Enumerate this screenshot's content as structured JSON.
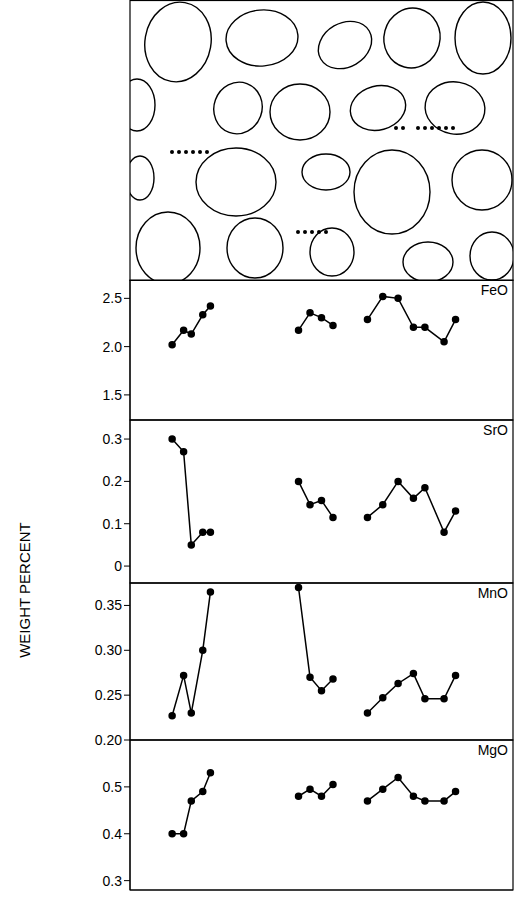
{
  "ylabel": "WEIGHT PERCENT",
  "chart_data": [
    {
      "type": "line",
      "title": "FeO",
      "color": "#000000",
      "marker": "circle",
      "tick_labels": "y",
      "grid": false,
      "x": [
        11,
        14,
        16,
        19,
        21,
        32,
        44,
        47,
        50,
        53,
        58,
        62,
        66,
        70,
        74,
        77,
        82,
        85
      ],
      "values": [
        2.02,
        2.17,
        2.13,
        2.33,
        2.42,
        null,
        2.17,
        2.35,
        2.3,
        2.22,
        null,
        2.28,
        2.52,
        2.5,
        2.2,
        2.2,
        2.05,
        2.28
      ],
      "xlim": [
        0,
        100
      ],
      "ylim": [
        1.24,
        2.69
      ],
      "yticks": [
        1.5,
        {
          "value": 2,
          "label": "2.0"
        },
        2.5
      ]
    },
    {
      "type": "line",
      "title": "SrO",
      "color": "#000000",
      "marker": "circle",
      "tick_labels": "y",
      "grid": false,
      "x": [
        11,
        14,
        16,
        19,
        21,
        32,
        44,
        47,
        50,
        53,
        58,
        62,
        66,
        70,
        74,
        77,
        82,
        85
      ],
      "values": [
        0.3,
        0.27,
        0.05,
        0.08,
        0.08,
        null,
        0.2,
        0.145,
        0.155,
        0.115,
        null,
        0.115,
        0.145,
        0.2,
        0.16,
        0.185,
        0.08,
        0.13
      ],
      "xlim": [
        0,
        100
      ],
      "ylim": [
        -0.04,
        0.345
      ],
      "yticks": [
        0,
        0.1,
        0.2,
        0.3
      ]
    },
    {
      "type": "line",
      "title": "MnO",
      "color": "#000000",
      "marker": "circle",
      "tick_labels": "y",
      "grid": false,
      "x": [
        11,
        14,
        16,
        19,
        21,
        32,
        44,
        47,
        50,
        53,
        58,
        62,
        66,
        70,
        74,
        77,
        82,
        85
      ],
      "values": [
        0.227,
        0.272,
        0.23,
        0.3,
        0.365,
        null,
        0.37,
        0.27,
        0.255,
        0.268,
        null,
        0.23,
        0.247,
        0.263,
        0.274,
        0.246,
        0.246,
        0.272
      ],
      "xlim": [
        0,
        100
      ],
      "ylim": [
        0.2,
        0.375
      ],
      "yticks": [
        {
          "value": 0.2,
          "label": "0.20"
        },
        0.25,
        {
          "value": 0.3,
          "label": "0.30"
        },
        0.35
      ]
    },
    {
      "type": "line",
      "title": "MgO",
      "color": "#000000",
      "marker": "circle",
      "tick_labels": "y",
      "grid": false,
      "x": [
        11,
        14,
        16,
        19,
        21,
        32,
        44,
        47,
        50,
        53,
        58,
        62,
        66,
        70,
        74,
        77,
        82,
        85
      ],
      "values": [
        0.4,
        0.4,
        0.47,
        0.49,
        0.53,
        null,
        0.48,
        0.495,
        0.48,
        0.505,
        null,
        0.47,
        0.495,
        0.52,
        0.48,
        0.47,
        0.47,
        0.49
      ],
      "xlim": [
        0,
        100
      ],
      "ylim": [
        0.28,
        0.6
      ],
      "yticks": [
        0.3,
        0.4,
        0.5
      ]
    }
  ]
}
